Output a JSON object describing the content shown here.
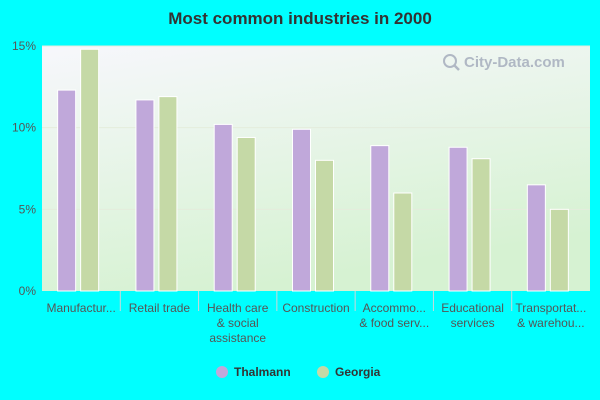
{
  "chart_data": {
    "type": "bar",
    "title": "Most common industries in 2000",
    "xlabel": "",
    "ylabel": "",
    "ylim": [
      0,
      15
    ],
    "yticks": [
      "0%",
      "5%",
      "10%",
      "15%"
    ],
    "ytick_values": [
      0,
      5,
      10,
      15
    ],
    "grid": true,
    "legend_position": "bottom",
    "categories": [
      [
        "Manufactur..."
      ],
      [
        "Retail trade"
      ],
      [
        "Health care",
        "& social",
        "assistance"
      ],
      [
        "Construction"
      ],
      [
        "Accommo...",
        "& food serv..."
      ],
      [
        "Educational",
        "services"
      ],
      [
        "Transportat...",
        "& warehou..."
      ]
    ],
    "series": [
      {
        "name": "Thalmann",
        "color": "#c0a8da",
        "values": [
          12.3,
          11.7,
          10.2,
          9.9,
          8.9,
          8.8,
          6.5
        ]
      },
      {
        "name": "Georgia",
        "color": "#c5d9a6",
        "values": [
          14.8,
          11.9,
          9.4,
          8.0,
          6.0,
          8.1,
          5.0
        ]
      }
    ]
  },
  "watermark": {
    "text": "City-Data.com",
    "icon": "magnifier-icon"
  },
  "colors": {
    "page_bg": "#00ffff",
    "plot_bg_top": "#f6f6fb",
    "plot_bg_bottom": "#d8f2d4"
  }
}
